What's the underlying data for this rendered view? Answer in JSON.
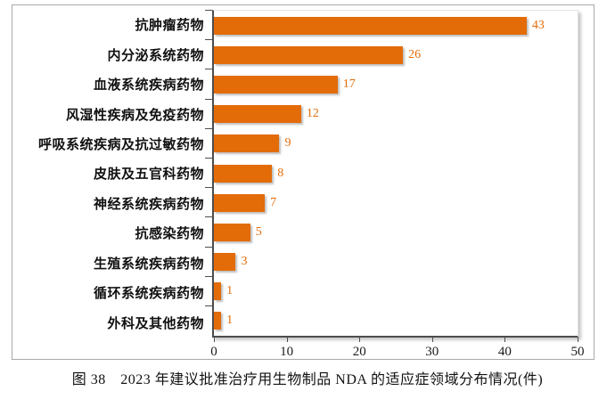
{
  "figure": {
    "caption": "图 38　2023 年建议批准治疗用生物制品 NDA 的适应症领域分布情况(件)"
  },
  "chart_data": {
    "type": "bar",
    "orientation": "horizontal",
    "title": "",
    "categories": [
      "抗肿瘤药物",
      "内分泌系统药物",
      "血液系统疾病药物",
      "风湿性疾病及免疫药物",
      "呼吸系统疾病及抗过敏药物",
      "皮肤及五官科药物",
      "神经系统疾病药物",
      "抗感染药物",
      "生殖系统疾病药物",
      "循环系统疾病药物",
      "外科及其他药物"
    ],
    "values": [
      43,
      26,
      17,
      12,
      9,
      8,
      7,
      5,
      3,
      1,
      1
    ],
    "value_labels": [
      "43",
      "26",
      "17",
      "12",
      "9",
      "8",
      "7",
      "5",
      "3",
      "1",
      "1"
    ],
    "xlabel": "",
    "ylabel": "",
    "xlim": [
      0,
      50
    ],
    "x_ticks": [
      0,
      10,
      20,
      30,
      40,
      50
    ],
    "grid": false,
    "legend": false,
    "bar_color": "#e36c09",
    "value_label_color": "#e36c09",
    "axis_color": "#4d4d4d"
  }
}
